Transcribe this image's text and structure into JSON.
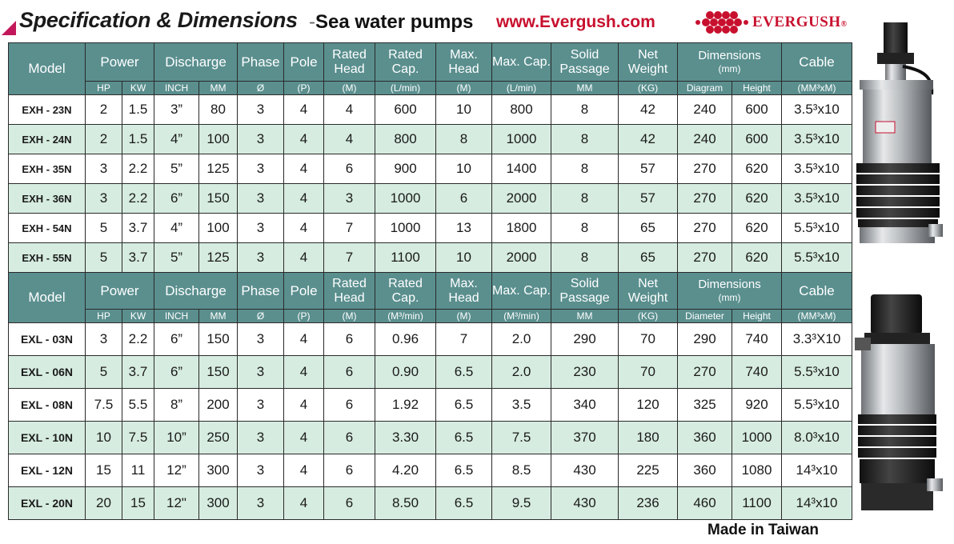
{
  "header": {
    "title": "Specification & Dimensions",
    "separator": "-",
    "subtitle": "Sea water pumps",
    "website": "www.Evergush.com",
    "brand": "EVERGUSH",
    "brand_mark": "®"
  },
  "exh_table": {
    "headers": {
      "model": "Model",
      "power": "Power",
      "discharge": "Discharge",
      "phase": "Phase",
      "pole": "Pole",
      "rated_head": "Rated Head",
      "rated_cap": "Rated Cap.",
      "max_head": "Max. Head",
      "max_cap": "Max. Cap.",
      "solid_passage": "Solid Passage",
      "net_weight": "Net Weight",
      "dimensions": "Dimensions",
      "dimensions_unit": "(mm)",
      "cable": "Cable"
    },
    "units": {
      "hp": "HP",
      "kw": "KW",
      "inch": "INCH",
      "mm": "MM",
      "phase": "Ø",
      "pole": "(P)",
      "rated_head": "(M)",
      "rated_cap": "(L/min)",
      "max_head": "(M)",
      "max_cap": "(L/min)",
      "solid": "MM",
      "weight": "(KG)",
      "dim1": "Diagram",
      "dim2": "Height",
      "cable": "(MM³xM)"
    },
    "rows": [
      {
        "model": "EXH - 23N",
        "hp": "2",
        "kw": "1.5",
        "inch": "3”",
        "mm": "80",
        "phase": "3",
        "pole": "4",
        "rated_head": "4",
        "rated_cap": "600",
        "max_head": "10",
        "max_cap": "800",
        "solid": "8",
        "weight": "42",
        "dim1": "240",
        "dim2": "600",
        "cable": "3.5³x10"
      },
      {
        "model": "EXH - 24N",
        "hp": "2",
        "kw": "1.5",
        "inch": "4”",
        "mm": "100",
        "phase": "3",
        "pole": "4",
        "rated_head": "4",
        "rated_cap": "800",
        "max_head": "8",
        "max_cap": "1000",
        "solid": "8",
        "weight": "42",
        "dim1": "240",
        "dim2": "600",
        "cable": "3.5³x10"
      },
      {
        "model": "EXH - 35N",
        "hp": "3",
        "kw": "2.2",
        "inch": "5”",
        "mm": "125",
        "phase": "3",
        "pole": "4",
        "rated_head": "6",
        "rated_cap": "900",
        "max_head": "10",
        "max_cap": "1400",
        "solid": "8",
        "weight": "57",
        "dim1": "270",
        "dim2": "620",
        "cable": "3.5³x10"
      },
      {
        "model": "EXH - 36N",
        "hp": "3",
        "kw": "2.2",
        "inch": "6”",
        "mm": "150",
        "phase": "3",
        "pole": "4",
        "rated_head": "3",
        "rated_cap": "1000",
        "max_head": "6",
        "max_cap": "2000",
        "solid": "8",
        "weight": "57",
        "dim1": "270",
        "dim2": "620",
        "cable": "3.5³x10"
      },
      {
        "model": "EXH - 54N",
        "hp": "5",
        "kw": "3.7",
        "inch": "4”",
        "mm": "100",
        "phase": "3",
        "pole": "4",
        "rated_head": "7",
        "rated_cap": "1000",
        "max_head": "13",
        "max_cap": "1800",
        "solid": "8",
        "weight": "65",
        "dim1": "270",
        "dim2": "620",
        "cable": "5.5³x10"
      },
      {
        "model": "EXH - 55N",
        "hp": "5",
        "kw": "3.7",
        "inch": "5”",
        "mm": "125",
        "phase": "3",
        "pole": "4",
        "rated_head": "7",
        "rated_cap": "1100",
        "max_head": "10",
        "max_cap": "2000",
        "solid": "8",
        "weight": "65",
        "dim1": "270",
        "dim2": "620",
        "cable": "5.5³x10"
      }
    ]
  },
  "exl_table": {
    "headers": {
      "model": "Model",
      "power": "Power",
      "discharge": "Discharge",
      "phase": "Phase",
      "pole": "Pole",
      "rated_head": "Rated Head",
      "rated_cap": "Rated Cap.",
      "max_head": "Max. Head",
      "max_cap": "Max. Cap.",
      "solid_passage": "Solid Passage",
      "net_weight": "Net Weight",
      "dimensions": "Dimensions",
      "dimensions_unit": "(mm)",
      "cable": "Cable"
    },
    "units": {
      "hp": "HP",
      "kw": "KW",
      "inch": "INCH",
      "mm": "MM",
      "phase": "Ø",
      "pole": "(P)",
      "rated_head": "(M)",
      "rated_cap": "(M³/min)",
      "max_head": "(M)",
      "max_cap": "(M³/min)",
      "solid": "MM",
      "weight": "(KG)",
      "dim1": "Diameter",
      "dim2": "Height",
      "cable": "(MM³xM)"
    },
    "rows": [
      {
        "model": "EXL - 03N",
        "hp": "3",
        "kw": "2.2",
        "inch": "6”",
        "mm": "150",
        "phase": "3",
        "pole": "4",
        "rated_head": "6",
        "rated_cap": "0.96",
        "max_head": "7",
        "max_cap": "2.0",
        "solid": "290",
        "weight": "70",
        "dim1": "290",
        "dim2": "740",
        "cable": "3.3³X10"
      },
      {
        "model": "EXL - 06N",
        "hp": "5",
        "kw": "3.7",
        "inch": "6”",
        "mm": "150",
        "phase": "3",
        "pole": "4",
        "rated_head": "6",
        "rated_cap": "0.90",
        "max_head": "6.5",
        "max_cap": "2.0",
        "solid": "230",
        "weight": "70",
        "dim1": "270",
        "dim2": "740",
        "cable": "5.5³x10"
      },
      {
        "model": "EXL - 08N",
        "hp": "7.5",
        "kw": "5.5",
        "inch": "8”",
        "mm": "200",
        "phase": "3",
        "pole": "4",
        "rated_head": "6",
        "rated_cap": "1.92",
        "max_head": "6.5",
        "max_cap": "3.5",
        "solid": "340",
        "weight": "120",
        "dim1": "325",
        "dim2": "920",
        "cable": "5.5³x10"
      },
      {
        "model": "EXL - 10N",
        "hp": "10",
        "kw": "7.5",
        "inch": "10”",
        "mm": "250",
        "phase": "3",
        "pole": "4",
        "rated_head": "6",
        "rated_cap": "3.30",
        "max_head": "6.5",
        "max_cap": "7.5",
        "solid": "370",
        "weight": "180",
        "dim1": "360",
        "dim2": "1000",
        "cable": "8.0³x10"
      },
      {
        "model": "EXL - 12N",
        "hp": "15",
        "kw": "11",
        "inch": "12”",
        "mm": "300",
        "phase": "3",
        "pole": "4",
        "rated_head": "6",
        "rated_cap": "4.20",
        "max_head": "6.5",
        "max_cap": "8.5",
        "solid": "430",
        "weight": "225",
        "dim1": "360",
        "dim2": "1080",
        "cable": "14³x10"
      },
      {
        "model": "EXL - 20N",
        "hp": "20",
        "kw": "15",
        "inch": "12\"",
        "mm": "300",
        "phase": "3",
        "pole": "4",
        "rated_head": "6",
        "rated_cap": "8.50",
        "max_head": "6.5",
        "max_cap": "9.5",
        "solid": "430",
        "weight": "236",
        "dim1": "460",
        "dim2": "1100",
        "cable": "14³x10"
      }
    ]
  },
  "footer": "Made in Taiwan",
  "colors": {
    "header_bg": "#5a8f8e",
    "row_alt": "#d6ece0",
    "accent_red": "#c8102e",
    "triangle": "#c2185b"
  }
}
